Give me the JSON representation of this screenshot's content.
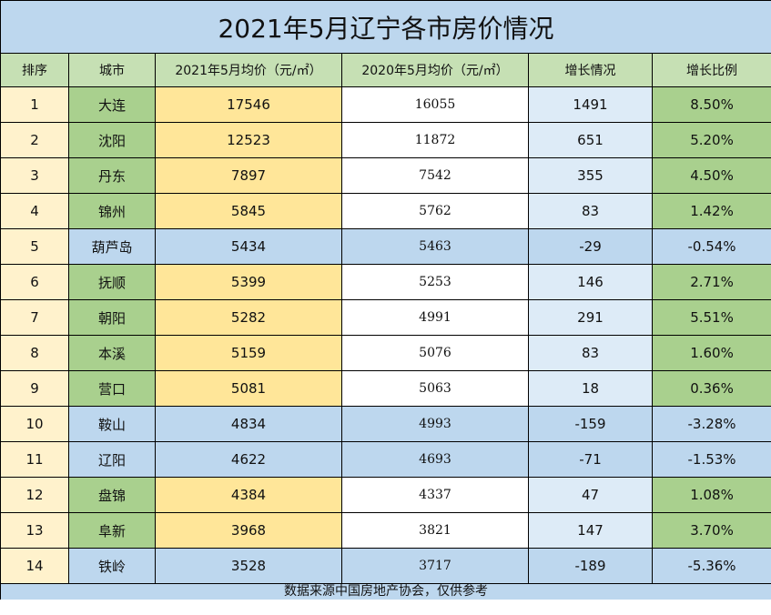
{
  "title": "2021年5月辽宁各市房价情况",
  "headers": {
    "rank": "排序",
    "city": "城市",
    "price_2021": "2021年5月均价（元/㎡）",
    "price_2020": "2020年5月均价（元/㎡）",
    "growth": "增长情况",
    "ratio": "增长比例"
  },
  "rows": [
    {
      "rank": "1",
      "city": "大连",
      "price_2021": "17546",
      "price_2020": "16055",
      "growth": "1491",
      "ratio": "8.50%"
    },
    {
      "rank": "2",
      "city": "沈阳",
      "price_2021": "12523",
      "price_2020": "11872",
      "growth": "651",
      "ratio": "5.20%"
    },
    {
      "rank": "3",
      "city": "丹东",
      "price_2021": "7897",
      "price_2020": "7542",
      "growth": "355",
      "ratio": "4.50%"
    },
    {
      "rank": "4",
      "city": "锦州",
      "price_2021": "5845",
      "price_2020": "5762",
      "growth": "83",
      "ratio": "1.42%"
    },
    {
      "rank": "5",
      "city": "葫芦岛",
      "price_2021": "5434",
      "price_2020": "5463",
      "growth": "-29",
      "ratio": "-0.54%"
    },
    {
      "rank": "6",
      "city": "抚顺",
      "price_2021": "5399",
      "price_2020": "5253",
      "growth": "146",
      "ratio": "2.71%"
    },
    {
      "rank": "7",
      "city": "朝阳",
      "price_2021": "5282",
      "price_2020": "4991",
      "growth": "291",
      "ratio": "5.51%"
    },
    {
      "rank": "8",
      "city": "本溪",
      "price_2021": "5159",
      "price_2020": "5076",
      "growth": "83",
      "ratio": "1.60%"
    },
    {
      "rank": "9",
      "city": "营口",
      "price_2021": "5081",
      "price_2020": "5063",
      "growth": "18",
      "ratio": "0.36%"
    },
    {
      "rank": "10",
      "city": "鞍山",
      "price_2021": "4834",
      "price_2020": "4993",
      "growth": "-159",
      "ratio": "-3.28%"
    },
    {
      "rank": "11",
      "city": "辽阳",
      "price_2021": "4622",
      "price_2020": "4693",
      "growth": "-71",
      "ratio": "-1.53%"
    },
    {
      "rank": "12",
      "city": "盘锦",
      "price_2021": "4384",
      "price_2020": "4337",
      "growth": "47",
      "ratio": "1.08%"
    },
    {
      "rank": "13",
      "city": "阜新",
      "price_2021": "3968",
      "price_2020": "3821",
      "growth": "147",
      "ratio": "3.70%"
    },
    {
      "rank": "14",
      "city": "铁岭",
      "price_2021": "3528",
      "price_2020": "3717",
      "growth": "-189",
      "ratio": "-5.36%"
    }
  ],
  "footer": "数据来源中国房地产协会，仅供参考",
  "colors": {
    "title_bg": "#bdd7ee",
    "header_bg": "#c6e0b4",
    "rank_bg": "#fff2cc",
    "city_up_bg": "#a9d08e",
    "price_up_bg": "#ffe699",
    "growth_bg": "#ddebf7",
    "decline_row_bg": "#bdd7ee"
  }
}
